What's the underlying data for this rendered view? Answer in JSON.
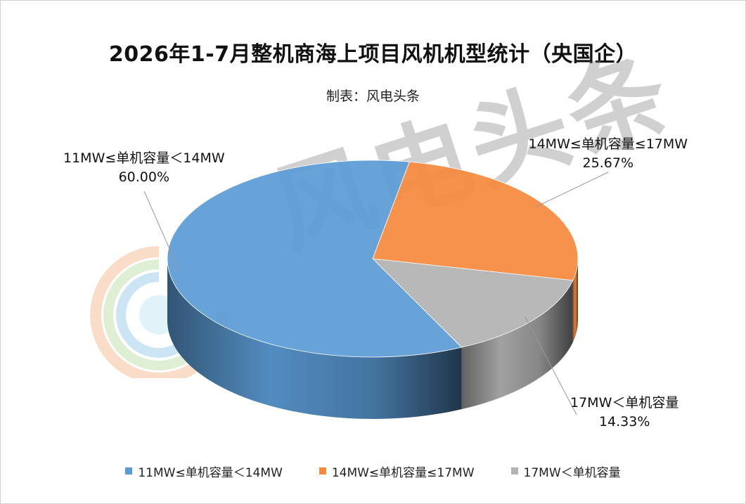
{
  "title": "2026年1-7月整机商海上项目风机机型统计（央国企）",
  "subtitle": "制表：风电头条",
  "watermark": "风电头条",
  "chart_data": {
    "type": "pie",
    "title": "2026年1-7月整机商海上项目风机机型统计（央国企）",
    "categories": [
      "11MW≤单机容量＜14MW",
      "14MW≤单机容量≤17MW",
      "17MW＜单机容量"
    ],
    "values": [
      60.0,
      25.67,
      14.33
    ],
    "value_labels": [
      "60.00%",
      "25.67%",
      "14.33%"
    ],
    "colors": [
      "#5B9BD5",
      "#F58A3D",
      "#B3B3B3"
    ],
    "legend_position": "bottom",
    "style": "3d"
  }
}
